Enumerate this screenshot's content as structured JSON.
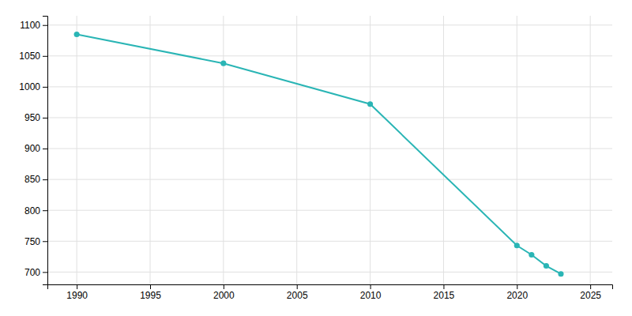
{
  "chart_data": {
    "type": "line",
    "x": [
      1990,
      2000,
      2010,
      2020,
      2021,
      2022,
      2023
    ],
    "values": [
      1085,
      1038,
      972,
      743,
      728,
      710,
      697
    ],
    "color": "#2ab5b5",
    "marker": "circle",
    "xlim": [
      1988,
      2026.5
    ],
    "ylim": [
      680,
      1115
    ],
    "xticks": [
      1990,
      1995,
      2000,
      2005,
      2010,
      2015,
      2020,
      2025
    ],
    "yticks": [
      700,
      750,
      800,
      850,
      900,
      950,
      1000,
      1050,
      1100
    ],
    "grid": true
  }
}
